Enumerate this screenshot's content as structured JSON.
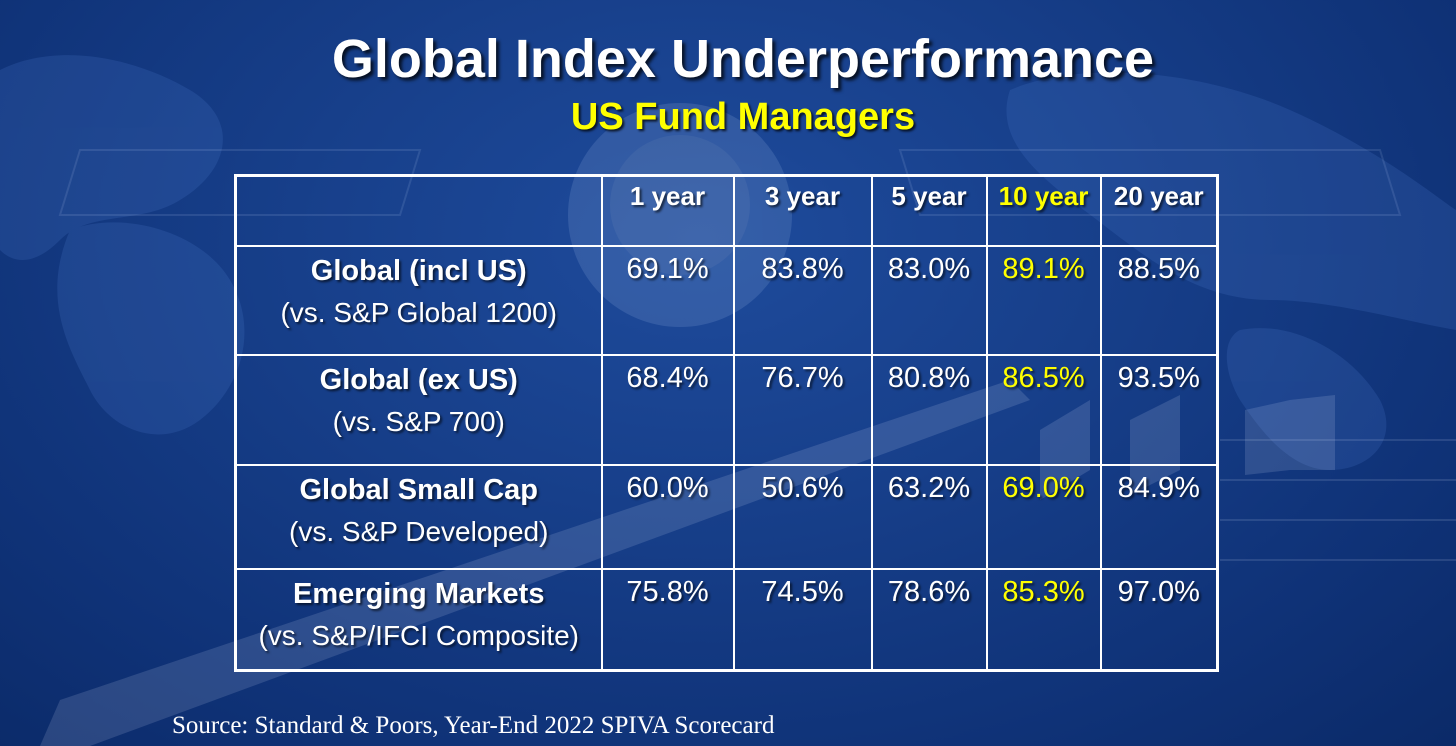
{
  "header": {
    "title": "Global Index Underperformance",
    "subtitle": "US Fund Managers"
  },
  "colors": {
    "background": "#163d87",
    "text": "#ffffff",
    "highlight": "#ffff00",
    "grid": "#ffffff"
  },
  "chart_data": {
    "type": "table",
    "columns": [
      "",
      "1 year",
      "3 year",
      "5 year",
      "10 year",
      "20 year"
    ],
    "highlighted_column": "10 year",
    "rows": [
      {
        "label": "Global (incl US)",
        "sublabel": "(vs. S&P Global 1200)",
        "cells": [
          "69.1%",
          "83.8%",
          "83.0%",
          "89.1%",
          "88.5%"
        ]
      },
      {
        "label": "Global (ex US)",
        "sublabel": "(vs. S&P 700)",
        "cells": [
          "68.4%",
          "76.7%",
          "80.8%",
          "86.5%",
          "93.5%"
        ]
      },
      {
        "label": "Global Small Cap",
        "sublabel": "(vs. S&P Developed)",
        "cells": [
          "60.0%",
          "50.6%",
          "63.2%",
          "69.0%",
          "84.9%"
        ]
      },
      {
        "label": "Emerging Markets",
        "sublabel": "(vs. S&P/IFCI Composite)",
        "cells": [
          "75.8%",
          "74.5%",
          "78.6%",
          "85.3%",
          "97.0%"
        ]
      }
    ],
    "values": [
      [
        69.1,
        83.8,
        83.0,
        89.1,
        88.5
      ],
      [
        68.4,
        76.7,
        80.8,
        86.5,
        93.5
      ],
      [
        60.0,
        50.6,
        63.2,
        69.0,
        84.9
      ],
      [
        75.8,
        74.5,
        78.6,
        85.3,
        97.0
      ]
    ]
  },
  "footer": {
    "source": "Source: Standard & Poors, Year-End 2022 SPIVA Scorecard"
  }
}
